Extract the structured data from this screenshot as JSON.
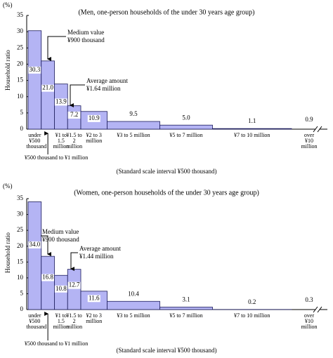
{
  "chart_data": [
    {
      "type": "histogram",
      "title": "(Men, one-person households of the under 30 years age group)",
      "unit": "(%)",
      "y_label": "Household ratio",
      "note": "(Standard scale interval ¥500 thousand)",
      "standard_interval": 500,
      "ylim": [
        0,
        35
      ],
      "yticks": [
        0,
        5,
        10,
        15,
        20,
        25,
        30,
        35
      ],
      "bins": [
        0,
        500,
        1000,
        1500,
        2000,
        3000,
        5000,
        7000,
        10000
      ],
      "categories": [
        "under ¥500 thousand",
        "¥500 thousand to ¥1 million",
        "¥1 to 1.5 million",
        "¥1.5 to 2 million",
        "¥2 to 3 million",
        "¥3 to 5 million",
        "¥5 to 7 million",
        "¥7 to 10 million"
      ],
      "values": [
        30.3,
        21.0,
        13.9,
        7.2,
        10.9,
        9.5,
        5.0,
        1.1
      ],
      "value_labels": [
        "30.3",
        "21.0",
        "13.9",
        "7.2",
        "10.9",
        "9.5",
        "5.0",
        "1.1"
      ],
      "open_category": {
        "label": "over ¥10 million",
        "value": 0.9
      },
      "color": "#b4b4f4",
      "annotations": [
        {
          "lines": [
            "Medium value",
            "¥900 thousand"
          ]
        },
        {
          "lines": [
            "Average amount",
            "¥1.64 million"
          ]
        }
      ]
    },
    {
      "type": "histogram",
      "title": "(Women, one-person households of the under 30 years age group)",
      "unit": "(%)",
      "y_label": "Household ratio",
      "note": "(Standard scale interval ¥500 thousand)",
      "standard_interval": 500,
      "ylim": [
        0,
        35
      ],
      "yticks": [
        0,
        5,
        10,
        15,
        20,
        25,
        30,
        35
      ],
      "bins": [
        0,
        500,
        1000,
        1500,
        2000,
        3000,
        5000,
        7000,
        10000
      ],
      "categories": [
        "under ¥500 thousand",
        "¥500 thousand to ¥1 million",
        "¥1 to 1.5 million",
        "¥1.5 to 2 million",
        "¥2 to 3 million",
        "¥3 to 5 million",
        "¥5 to 7 million",
        "¥7 to 10 million"
      ],
      "values": [
        34.0,
        16.8,
        10.8,
        12.7,
        11.6,
        10.4,
        3.1,
        0.2
      ],
      "value_labels": [
        "34.0",
        "16.8",
        "10.8",
        "12.7",
        "11.6",
        "10.4",
        "3.1",
        "0.2"
      ],
      "open_category": {
        "label": "over ¥10 million",
        "value": 0.3
      },
      "color": "#b4b4f4",
      "annotations": [
        {
          "lines": [
            "Medium value",
            "¥900 thousand"
          ]
        },
        {
          "lines": [
            "Average amount",
            "¥1.44 million"
          ]
        }
      ]
    }
  ]
}
